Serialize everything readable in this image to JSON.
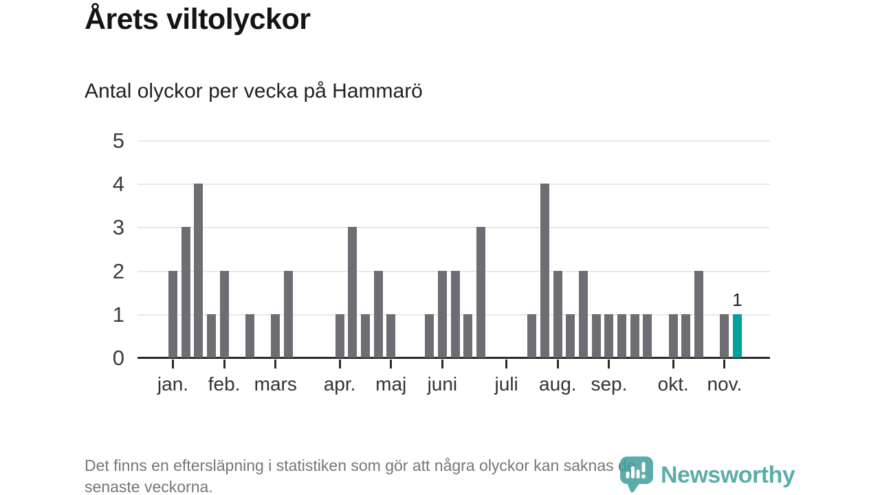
{
  "chart_data": {
    "type": "bar",
    "title": "Årets viltolyckor",
    "subtitle": "Antal olyckor per vecka på Hammarö",
    "x_unit": "vecka",
    "values": [
      2,
      3,
      4,
      1,
      2,
      0,
      1,
      0,
      1,
      2,
      0,
      0,
      0,
      1,
      3,
      1,
      2,
      1,
      0,
      0,
      1,
      2,
      2,
      1,
      3,
      0,
      0,
      0,
      1,
      4,
      2,
      1,
      2,
      1,
      1,
      1,
      1,
      1,
      0,
      1,
      1,
      2,
      0,
      1,
      1
    ],
    "ylim": [
      0,
      5
    ],
    "y_ticks": [
      0,
      1,
      2,
      3,
      4,
      5
    ],
    "grid": "horizontal",
    "month_ticks": [
      {
        "week": 0,
        "label": "jan."
      },
      {
        "week": 4,
        "label": "feb."
      },
      {
        "week": 8,
        "label": "mars"
      },
      {
        "week": 13,
        "label": "apr."
      },
      {
        "week": 17,
        "label": "maj"
      },
      {
        "week": 21,
        "label": "juni"
      },
      {
        "week": 26,
        "label": "juli"
      },
      {
        "week": 30,
        "label": "aug."
      },
      {
        "week": 34,
        "label": "sep."
      },
      {
        "week": 39,
        "label": "okt."
      },
      {
        "week": 43,
        "label": "nov."
      }
    ],
    "highlight": {
      "index": 44,
      "label": "1"
    },
    "colors": {
      "bar": "#6e6d73",
      "highlight": "#00a29a",
      "grid": "#e8e8e8",
      "axis": "#2b2b2b"
    }
  },
  "footer": {
    "lines": [
      "Det finns en eftersläpning i statistiken som gör att några olyckor kan saknas de",
      "senaste veckorna."
    ]
  },
  "logo": {
    "text": "Newsworthy",
    "color": "#3f9f9b"
  }
}
